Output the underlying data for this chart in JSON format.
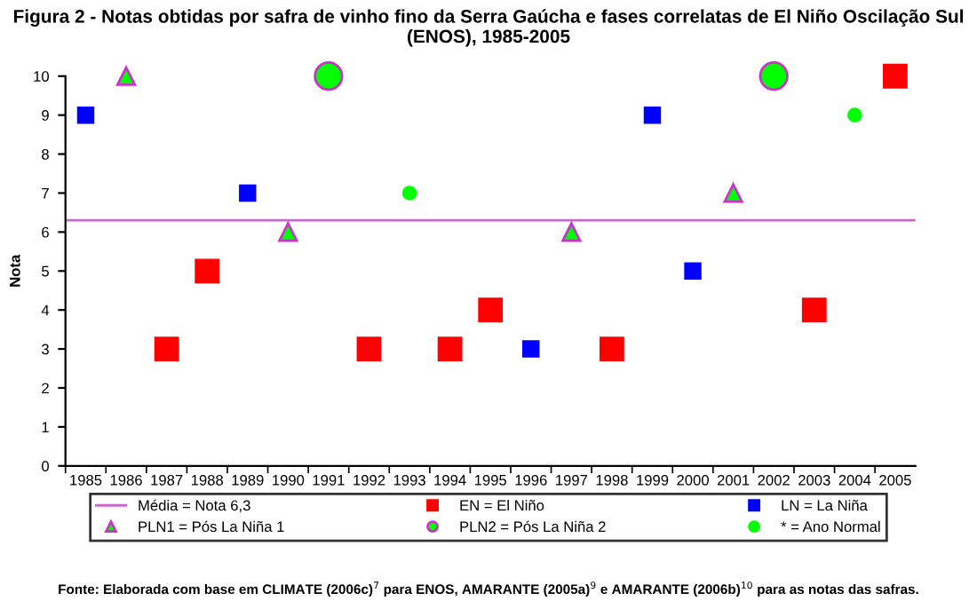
{
  "chart_data": {
    "type": "scatter",
    "title": "Figura 2 - Notas obtidas por safra de vinho fino da Serra Gaúcha e fases correlatas de El Niño Oscilação Sul (ENOS), 1985-2005",
    "ylabel": "Nota",
    "categories": [
      "1985",
      "1986",
      "1987",
      "1988",
      "1989",
      "1990",
      "1991",
      "1992",
      "1993",
      "1994",
      "1995",
      "1996",
      "1997",
      "1998",
      "1999",
      "2000",
      "2001",
      "2002",
      "2003",
      "2004",
      "2005"
    ],
    "series": [
      {
        "name": "EN = El Niño",
        "color": "#ff0000",
        "marker": "square",
        "values": [
          null,
          null,
          3,
          5,
          null,
          null,
          null,
          3,
          null,
          3,
          4,
          null,
          null,
          3,
          null,
          null,
          null,
          null,
          4,
          null,
          10
        ]
      },
      {
        "name": "LN = La Niña",
        "color": "#0000ff",
        "marker": "square",
        "values": [
          9,
          null,
          null,
          null,
          7,
          null,
          null,
          null,
          null,
          null,
          null,
          3,
          null,
          null,
          9,
          5,
          null,
          null,
          null,
          null,
          null
        ]
      },
      {
        "name": "PLN1 = Pós La Niña 1",
        "color": "#00ff00",
        "marker": "triangle",
        "values": [
          null,
          10,
          null,
          null,
          null,
          6,
          null,
          null,
          null,
          null,
          null,
          null,
          6,
          null,
          null,
          null,
          7,
          null,
          null,
          null,
          null
        ]
      },
      {
        "name": "PLN2 = Pós La Niña 2",
        "color": "#00ff00",
        "marker": "circle",
        "values": [
          null,
          null,
          null,
          null,
          null,
          null,
          10,
          null,
          null,
          null,
          null,
          null,
          null,
          null,
          null,
          null,
          null,
          10,
          null,
          null,
          null
        ]
      },
      {
        "name": "* = Ano Normal",
        "color": "#00ff00",
        "marker": "circle",
        "values": [
          null,
          null,
          null,
          null,
          null,
          null,
          null,
          null,
          7,
          null,
          null,
          null,
          null,
          null,
          null,
          null,
          null,
          null,
          null,
          9,
          null
        ]
      }
    ],
    "ref_lines": [
      {
        "axis": "y",
        "value": 6.3,
        "label": "Média = Nota 6,3",
        "color": "#cc66cc"
      }
    ],
    "ylim": [
      0,
      10
    ],
    "yticks": [
      0,
      1,
      2,
      3,
      4,
      5,
      6,
      7,
      8,
      9,
      10
    ],
    "grid": false,
    "legend": "bottom",
    "annotations": [
      "Fonte: Elaborada com base em CLIMATE (2006c)$^{7}$ para ENOS, AMARANTE (2005a)$^{9}$ e AMARANTE (2006b)$^{10}$ para as notas das safras."
    ]
  }
}
